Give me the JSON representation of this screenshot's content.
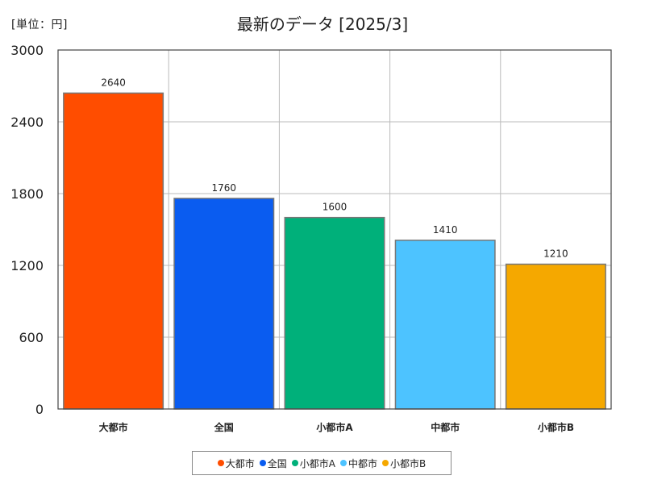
{
  "chart_data": {
    "type": "bar",
    "title": "最新のデータ [2025/3]",
    "unit_label": "[単位：円]",
    "categories": [
      "大都市",
      "全国",
      "小都市A",
      "中都市",
      "小都市B"
    ],
    "values": [
      2640,
      1760,
      1600,
      1410,
      1210
    ],
    "colors": [
      "#ff4d00",
      "#0a5cf0",
      "#00b07a",
      "#4dc3ff",
      "#f5a800"
    ],
    "ylim": [
      0,
      3000
    ],
    "yticks": [
      0,
      600,
      1200,
      1800,
      2400,
      3000
    ],
    "grid": true,
    "legend_position": "bottom"
  }
}
